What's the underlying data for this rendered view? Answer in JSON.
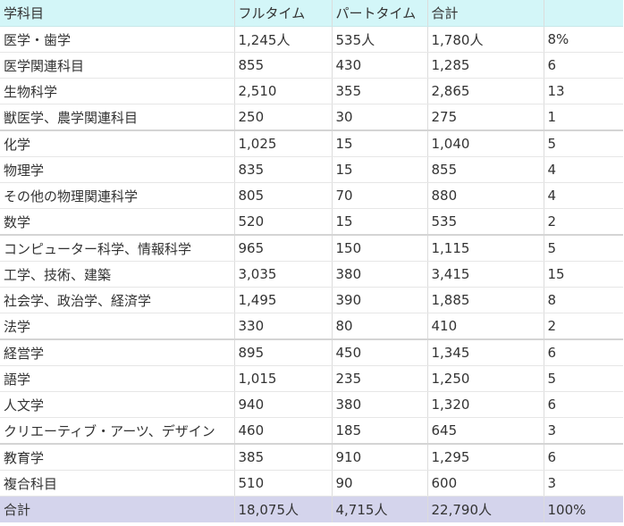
{
  "table": {
    "headers": [
      "学科目",
      "フルタイム",
      "パートタイム",
      "合計",
      ""
    ],
    "rows": [
      [
        "医学・歯学",
        "1,245人",
        "535人",
        "1,780人",
        "8%"
      ],
      [
        "医学関連科目",
        "855",
        "430",
        "1,285",
        "6"
      ],
      [
        "生物科学",
        "2,510",
        "355",
        "2,865",
        "13"
      ],
      [
        "獣医学、農学関連科目",
        "250",
        "30",
        "275",
        "1"
      ],
      [
        "化学",
        "1,025",
        "15",
        "1,040",
        "5"
      ],
      [
        "物理学",
        "835",
        "15",
        "855",
        "4"
      ],
      [
        "その他の物理関連科学",
        "805",
        "70",
        "880",
        "4"
      ],
      [
        "数学",
        "520",
        "15",
        "535",
        "2"
      ],
      [
        "コンピューター科学、情報科学",
        "965",
        "150",
        "1,115",
        "5"
      ],
      [
        "工学、技術、建築",
        "3,035",
        "380",
        "3,415",
        "15"
      ],
      [
        "社会学、政治学、経済学",
        "1,495",
        "390",
        "1,885",
        "8"
      ],
      [
        "法学",
        "330",
        "80",
        "410",
        "2"
      ],
      [
        "経営学",
        "895",
        "450",
        "1,345",
        "6"
      ],
      [
        "語学",
        "1,015",
        "235",
        "1,250",
        "5"
      ],
      [
        "人文学",
        "940",
        "380",
        "1,320",
        "6"
      ],
      [
        "クリエーティブ・アーツ、デザイン",
        "460",
        "185",
        "645",
        "3"
      ],
      [
        "教育学",
        "385",
        "910",
        "1,295",
        "6"
      ],
      [
        "複合科目",
        "510",
        "90",
        "600",
        "3"
      ]
    ],
    "footer": [
      "合計",
      "18,075人",
      "4,715人",
      "22,790人",
      "100%"
    ]
  }
}
